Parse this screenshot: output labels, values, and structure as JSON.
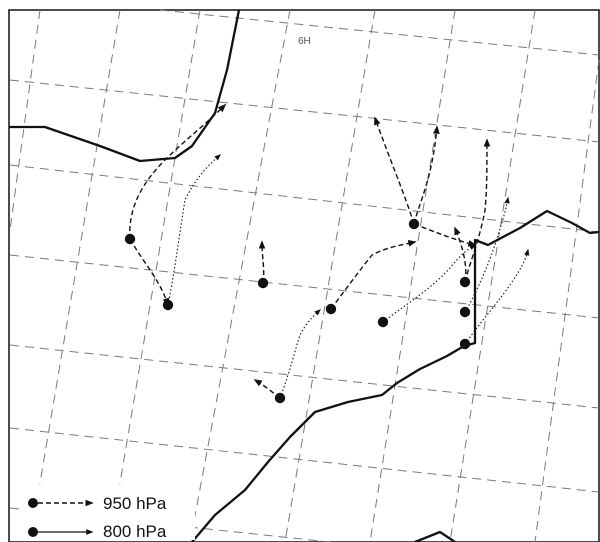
{
  "map": {
    "grid_label": "6H",
    "legend": [
      {
        "label": "950 hPa",
        "style": "dashed",
        "icon": "dot-dashed-arrow-icon"
      },
      {
        "label": "800 hPa",
        "style": "solid",
        "icon": "dot-solid-arrow-icon"
      }
    ],
    "colors": {
      "ink": "#111111",
      "grid": "#7a7a7a",
      "background": "#ffffff"
    }
  }
}
